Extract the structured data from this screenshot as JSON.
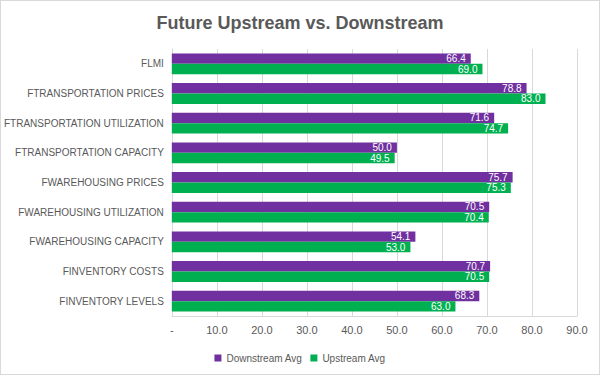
{
  "chart_data": {
    "type": "bar",
    "orientation": "horizontal",
    "title": "Future Upstream vs. Downstream",
    "categories": [
      "FLMI",
      "FTRANSPORTATION PRICES",
      "FTRANSPORTATION UTILIZATION",
      "FTRANSPORTATION CAPACITY",
      "FWAREHOUSING PRICES",
      "FWAREHOUSING UTILIZATION",
      "FWAREHOUSING CAPACITY",
      "FINVENTORY COSTS",
      "FINVENTORY LEVELS"
    ],
    "series": [
      {
        "name": "Downstream Avg",
        "color": "#7030a0",
        "values": [
          66.4,
          78.8,
          71.6,
          50.0,
          75.7,
          70.5,
          54.1,
          70.7,
          68.3
        ],
        "value_labels": [
          "66.4",
          "78.8",
          "71.6",
          "50.0",
          "75.7",
          "70.5",
          "54.1",
          "70.7",
          "68.3"
        ]
      },
      {
        "name": "Upstream Avg",
        "color": "#00b050",
        "values": [
          69.0,
          83.0,
          74.7,
          49.5,
          75.3,
          70.4,
          53.0,
          70.5,
          63.0
        ],
        "value_labels": [
          "69.0",
          "83.0",
          "74.7",
          "49.5",
          "75.3",
          "70.4",
          "53.0",
          "70.5",
          "63.0"
        ]
      }
    ],
    "xlim": [
      0,
      90
    ],
    "xticks": [
      {
        "value": 0,
        "label": "-"
      },
      {
        "value": 10,
        "label": "10.0"
      },
      {
        "value": 20,
        "label": "20.0"
      },
      {
        "value": 30,
        "label": "30.0"
      },
      {
        "value": 40,
        "label": "40.0"
      },
      {
        "value": 50,
        "label": "50.0"
      },
      {
        "value": 60,
        "label": "60.0"
      },
      {
        "value": 70,
        "label": "70.0"
      },
      {
        "value": 80,
        "label": "80.0"
      },
      {
        "value": 90,
        "label": "90.0"
      }
    ],
    "grid": true,
    "legend": "bottom",
    "data_labels": true
  }
}
